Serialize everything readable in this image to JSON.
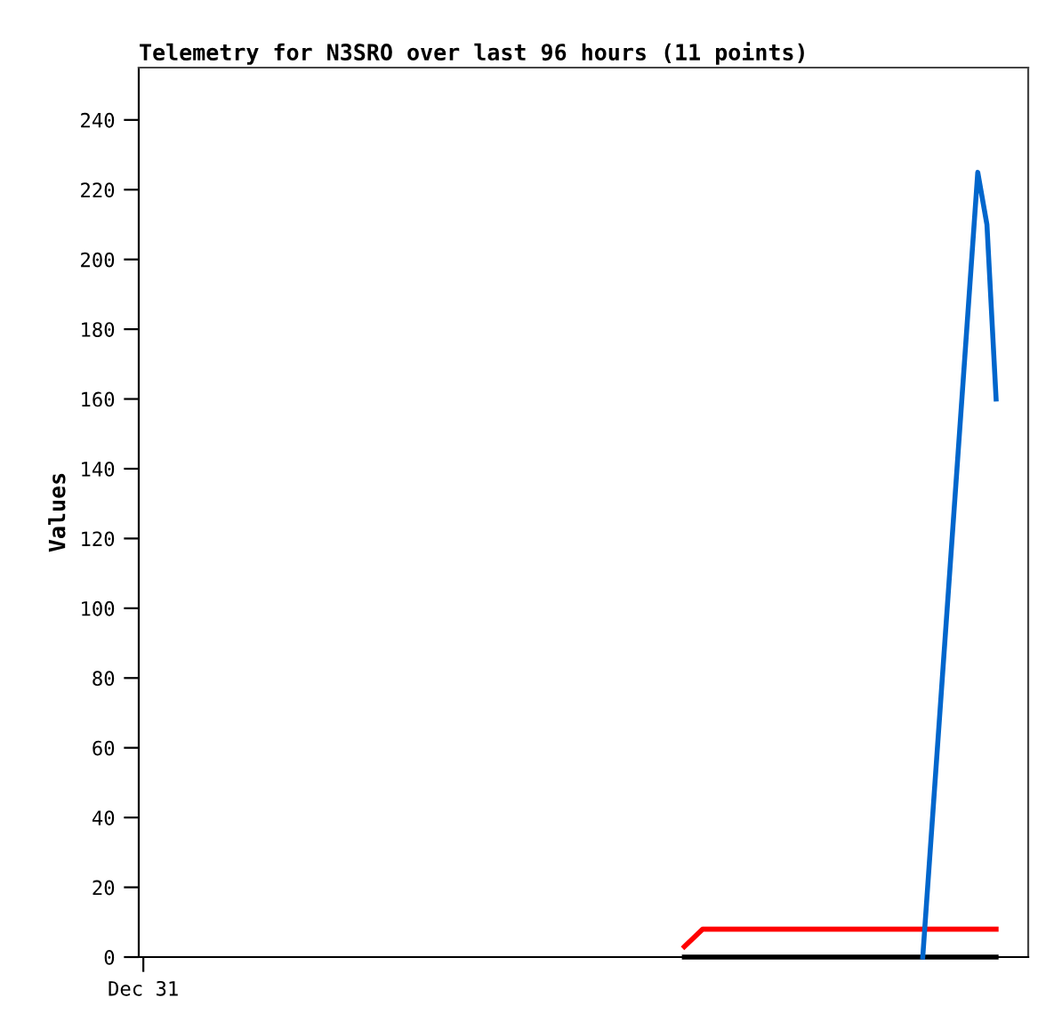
{
  "chart_data": {
    "type": "line",
    "title": "Telemetry for N3SRO over last 96 hours (11 points)",
    "ylabel": "Values",
    "categories": [
      "Dec 31",
      null,
      null,
      null,
      null,
      null,
      null,
      null,
      null,
      null,
      null,
      null,
      null,
      null,
      null,
      null,
      null,
      null,
      null,
      null,
      null,
      null,
      null,
      null,
      null,
      null,
      null,
      null,
      null,
      null,
      null,
      null,
      null,
      null,
      null,
      null,
      null,
      null,
      null,
      null,
      null,
      null,
      null,
      null,
      null,
      null,
      null,
      null,
      null,
      null,
      null,
      null,
      null,
      null,
      null,
      null,
      null,
      null,
      null,
      null,
      null,
      null,
      null,
      null,
      null,
      null,
      null,
      null,
      null,
      null,
      null,
      null,
      null,
      null,
      null,
      null,
      null,
      null,
      null,
      null,
      null,
      null,
      null,
      null,
      null,
      null,
      null,
      null,
      null,
      null,
      null,
      null,
      null,
      null,
      null,
      null,
      null
    ],
    "ylim": [
      0,
      255
    ],
    "yticks": [
      0,
      20,
      40,
      60,
      80,
      100,
      120,
      140,
      160,
      180,
      200,
      220,
      240
    ],
    "series": [
      {
        "color": "#000000",
        "values": [
          null,
          null,
          null,
          null,
          null,
          null,
          null,
          null,
          null,
          null,
          null,
          null,
          null,
          null,
          null,
          null,
          null,
          null,
          null,
          null,
          null,
          null,
          null,
          null,
          null,
          null,
          null,
          null,
          null,
          null,
          null,
          null,
          null,
          null,
          null,
          null,
          null,
          null,
          null,
          null,
          null,
          null,
          null,
          null,
          null,
          null,
          null,
          null,
          null,
          null,
          null,
          null,
          null,
          null,
          null,
          null,
          null,
          null,
          null,
          0,
          null,
          null,
          null,
          null,
          null,
          null,
          null,
          null,
          null,
          null,
          null,
          null,
          null,
          null,
          null,
          null,
          null,
          null,
          null,
          null,
          null,
          null,
          null,
          null,
          null,
          null,
          null,
          null,
          null,
          null,
          null,
          null,
          null,
          0,
          null,
          null,
          null
        ]
      },
      {
        "color": "#ff0000",
        "values": [
          null,
          null,
          null,
          null,
          null,
          null,
          null,
          null,
          null,
          null,
          null,
          null,
          null,
          null,
          null,
          null,
          null,
          null,
          null,
          null,
          null,
          null,
          null,
          null,
          null,
          null,
          null,
          null,
          null,
          null,
          null,
          null,
          null,
          null,
          null,
          null,
          null,
          null,
          null,
          null,
          null,
          null,
          null,
          null,
          null,
          null,
          null,
          null,
          null,
          null,
          null,
          null,
          null,
          null,
          null,
          null,
          null,
          null,
          null,
          3,
          null,
          8,
          null,
          null,
          null,
          null,
          null,
          null,
          null,
          null,
          null,
          null,
          null,
          null,
          null,
          null,
          null,
          null,
          null,
          null,
          null,
          null,
          null,
          null,
          null,
          null,
          null,
          null,
          null,
          null,
          null,
          null,
          null,
          8,
          null,
          null,
          null
        ]
      },
      {
        "color": "#0066cc",
        "values": [
          null,
          null,
          null,
          null,
          null,
          null,
          null,
          null,
          null,
          null,
          null,
          null,
          null,
          null,
          null,
          null,
          null,
          null,
          null,
          null,
          null,
          null,
          null,
          null,
          null,
          null,
          null,
          null,
          null,
          null,
          null,
          null,
          null,
          null,
          null,
          null,
          null,
          null,
          null,
          null,
          null,
          null,
          null,
          null,
          null,
          null,
          null,
          null,
          null,
          null,
          null,
          null,
          null,
          null,
          null,
          null,
          null,
          null,
          null,
          null,
          null,
          null,
          null,
          null,
          null,
          null,
          null,
          null,
          null,
          null,
          null,
          null,
          null,
          null,
          null,
          null,
          null,
          null,
          null,
          null,
          null,
          null,
          null,
          null,
          null,
          0,
          null,
          null,
          null,
          null,
          null,
          225,
          210,
          160,
          null,
          null,
          null
        ]
      }
    ],
    "grid": false,
    "legend": false
  }
}
